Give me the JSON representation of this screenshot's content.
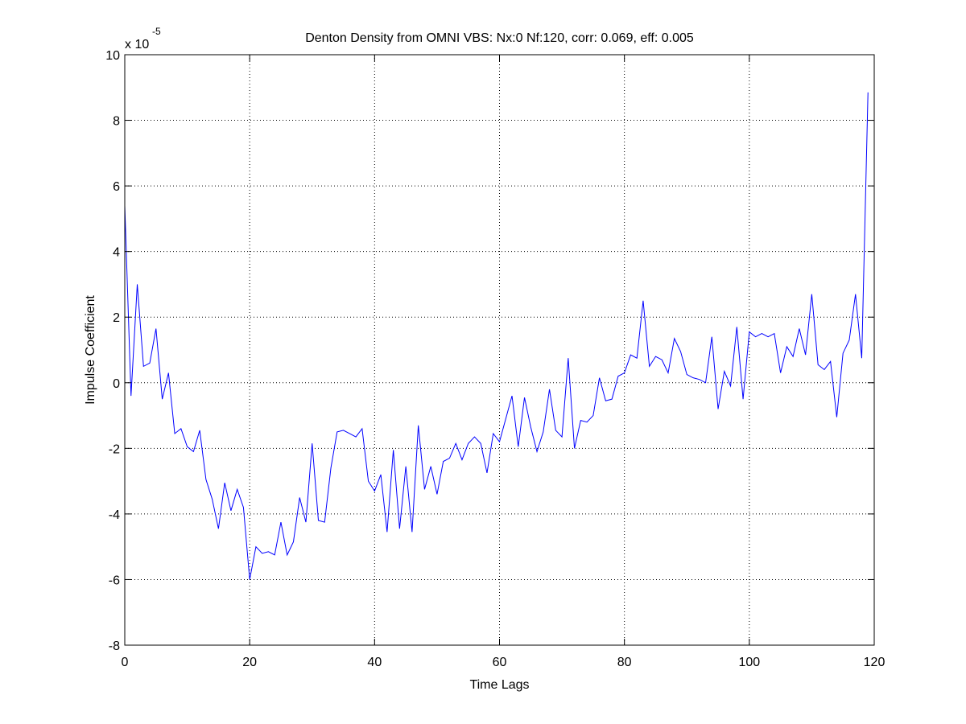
{
  "chart_data": {
    "type": "line",
    "title": "Denton Density from OMNI VBS: Nx:0 Nf:120, corr: 0.069, eff: 0.005",
    "xlabel": "Time Lags",
    "ylabel": "Impulse Coefficient",
    "y_exponent_label": "x 10",
    "y_exponent_power": "-5",
    "xlim": [
      0,
      120
    ],
    "ylim": [
      -8,
      10
    ],
    "xticks": [
      0,
      20,
      40,
      60,
      80,
      100,
      120
    ],
    "yticks": [
      -8,
      -6,
      -4,
      -2,
      0,
      2,
      4,
      6,
      8,
      10
    ],
    "grid": true,
    "line_color": "#0000ff",
    "series": [
      {
        "x": [
          0,
          1,
          2,
          3,
          4,
          5,
          6,
          7,
          8,
          9,
          10,
          11,
          12,
          13,
          14,
          15,
          16,
          17,
          18,
          19,
          20,
          21,
          22,
          23,
          24,
          25,
          26,
          27,
          28,
          29,
          30,
          31,
          32,
          33,
          34,
          35,
          36,
          37,
          38,
          39,
          40,
          41,
          42,
          43,
          44,
          45,
          46,
          47,
          48,
          49,
          50,
          51,
          52,
          53,
          54,
          55,
          56,
          57,
          58,
          59,
          60,
          61,
          62,
          63,
          64,
          65,
          66,
          67,
          68,
          69,
          70,
          71,
          72,
          73,
          74,
          75,
          76,
          77,
          78,
          79,
          80,
          81,
          82,
          83,
          84,
          85,
          86,
          87,
          88,
          89,
          90,
          91,
          92,
          93,
          94,
          95,
          96,
          97,
          98,
          99,
          100,
          101,
          102,
          103,
          104,
          105,
          106,
          107,
          108,
          109,
          110,
          111,
          112,
          113,
          114,
          115,
          116,
          117,
          118,
          119
        ],
        "y": [
          5.4,
          -0.4,
          3.0,
          0.5,
          0.6,
          1.65,
          -0.5,
          0.3,
          -1.55,
          -1.4,
          -1.95,
          -2.1,
          -1.45,
          -2.95,
          -3.55,
          -4.45,
          -3.05,
          -3.9,
          -3.25,
          -3.8,
          -6.0,
          -5.0,
          -5.2,
          -5.15,
          -5.25,
          -4.25,
          -5.25,
          -4.85,
          -3.5,
          -4.25,
          -1.85,
          -4.2,
          -4.25,
          -2.6,
          -1.5,
          -1.45,
          -1.55,
          -1.65,
          -1.4,
          -3.0,
          -3.3,
          -2.8,
          -4.55,
          -2.05,
          -4.45,
          -2.55,
          -4.55,
          -1.3,
          -3.25,
          -2.55,
          -3.4,
          -2.4,
          -2.3,
          -1.85,
          -2.35,
          -1.85,
          -1.65,
          -1.85,
          -2.75,
          -1.55,
          -1.8,
          -1.1,
          -0.4,
          -1.95,
          -0.45,
          -1.35,
          -2.1,
          -1.5,
          -0.2,
          -1.45,
          -1.65,
          0.75,
          -2.0,
          -1.15,
          -1.2,
          -1.0,
          0.15,
          -0.55,
          -0.5,
          0.2,
          0.3,
          0.85,
          0.75,
          2.5,
          0.5,
          0.8,
          0.7,
          0.3,
          1.35,
          0.95,
          0.25,
          0.15,
          0.1,
          0.0,
          1.4,
          -0.8,
          0.35,
          -0.1,
          1.7,
          -0.5,
          1.55,
          1.4,
          1.5,
          1.4,
          1.5,
          0.3,
          1.1,
          0.8,
          1.65,
          0.85,
          2.7,
          0.55,
          0.4,
          0.65,
          -1.05,
          0.9,
          1.3,
          2.7,
          0.75,
          8.85
        ]
      }
    ]
  }
}
